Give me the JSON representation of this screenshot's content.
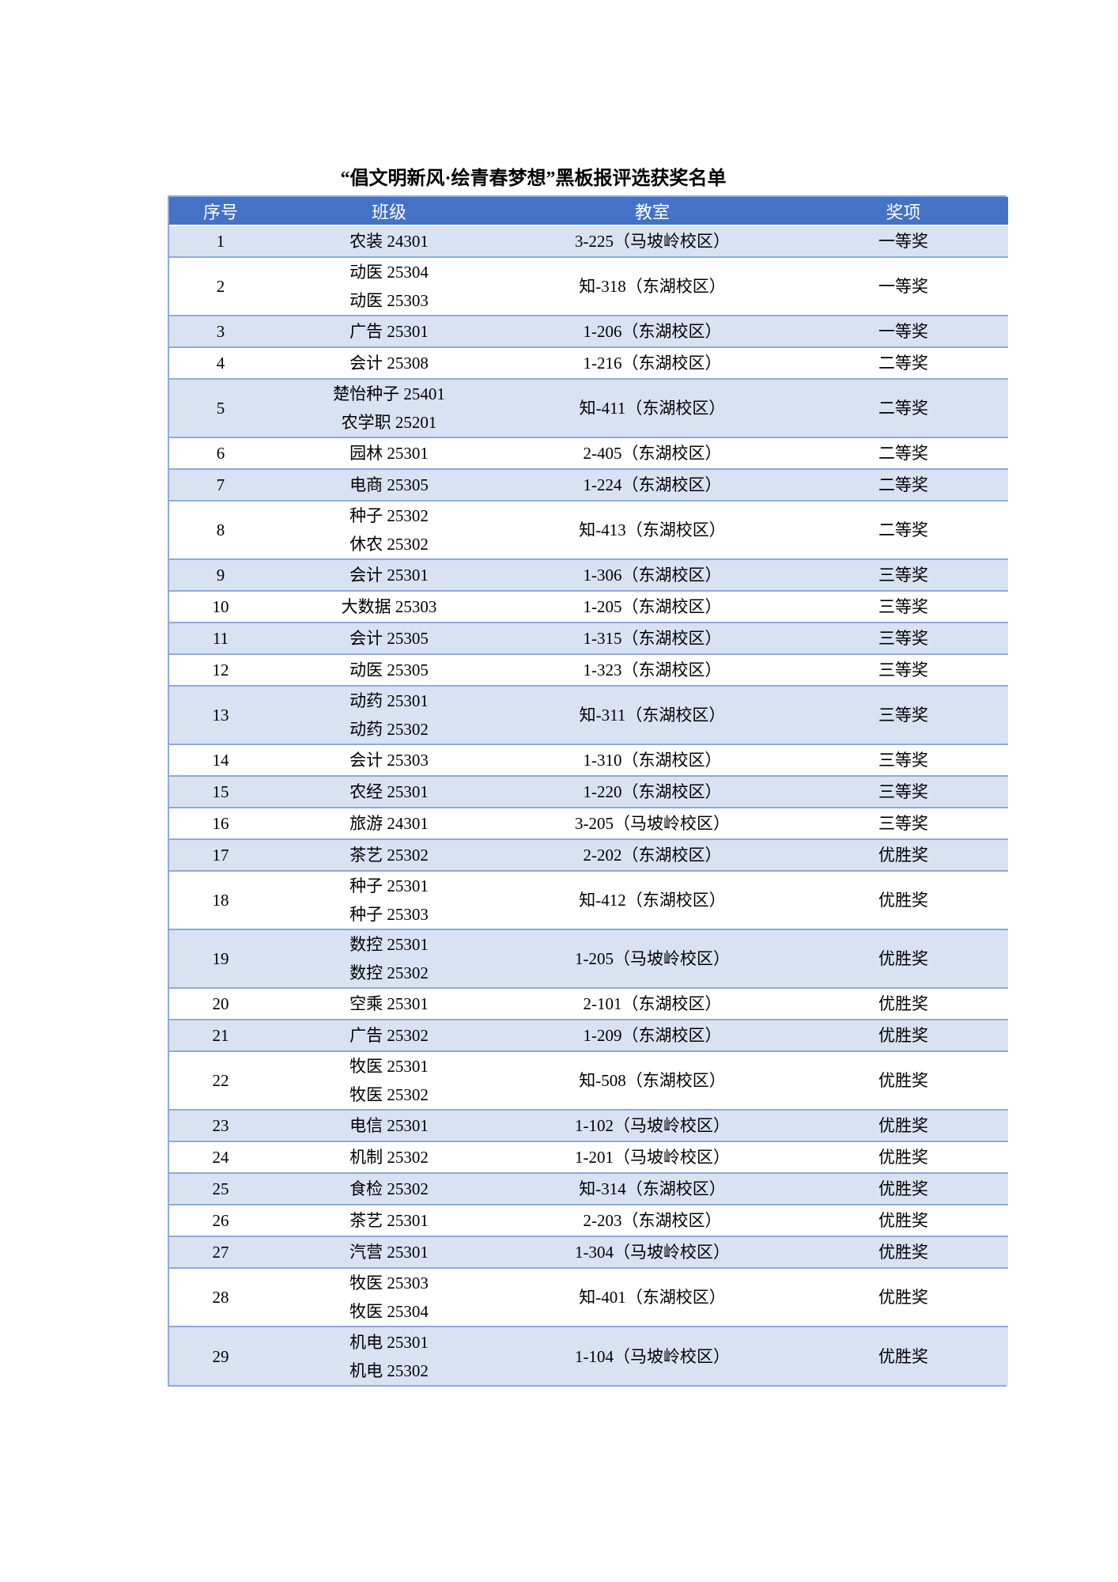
{
  "title": "“倡文明新风·绘青春梦想”黑板报评选获奖名单",
  "colors": {
    "header_bg": "#4472C4",
    "header_text": "#FFFFFF",
    "band_bg": "#D9E2F3",
    "row_bg": "#FFFFFF",
    "border": "#8EAADB",
    "body_text": "#000000",
    "page_bg": "#FFFFFF"
  },
  "table": {
    "headers": [
      "序号",
      "班级",
      "教室",
      "奖项"
    ],
    "rows": [
      {
        "no": "1",
        "classes": [
          "农装 24301"
        ],
        "room": "3-225（马坡岭校区）",
        "award": "一等奖"
      },
      {
        "no": "2",
        "classes": [
          "动医 25304",
          "动医 25303"
        ],
        "room": "知-318（东湖校区）",
        "award": "一等奖"
      },
      {
        "no": "3",
        "classes": [
          "广告 25301"
        ],
        "room": "1-206（东湖校区）",
        "award": "一等奖"
      },
      {
        "no": "4",
        "classes": [
          "会计 25308"
        ],
        "room": "1-216（东湖校区）",
        "award": "二等奖"
      },
      {
        "no": "5",
        "classes": [
          "楚怡种子 25401",
          "农学职 25201"
        ],
        "room": "知-411（东湖校区）",
        "award": "二等奖"
      },
      {
        "no": "6",
        "classes": [
          "园林 25301"
        ],
        "room": "2-405（东湖校区）",
        "award": "二等奖"
      },
      {
        "no": "7",
        "classes": [
          "电商 25305"
        ],
        "room": "1-224（东湖校区）",
        "award": "二等奖"
      },
      {
        "no": "8",
        "classes": [
          "种子 25302",
          "休农 25302"
        ],
        "room": "知-413（东湖校区）",
        "award": "二等奖"
      },
      {
        "no": "9",
        "classes": [
          "会计 25301"
        ],
        "room": "1-306（东湖校区）",
        "award": "三等奖"
      },
      {
        "no": "10",
        "classes": [
          "大数据 25303"
        ],
        "room": "1-205（东湖校区）",
        "award": "三等奖"
      },
      {
        "no": "11",
        "classes": [
          "会计 25305"
        ],
        "room": "1-315（东湖校区）",
        "award": "三等奖"
      },
      {
        "no": "12",
        "classes": [
          "动医 25305"
        ],
        "room": "1-323（东湖校区）",
        "award": "三等奖"
      },
      {
        "no": "13",
        "classes": [
          "动药 25301",
          "动药 25302"
        ],
        "room": "知-311（东湖校区）",
        "award": "三等奖"
      },
      {
        "no": "14",
        "classes": [
          "会计 25303"
        ],
        "room": "1-310（东湖校区）",
        "award": "三等奖"
      },
      {
        "no": "15",
        "classes": [
          "农经 25301"
        ],
        "room": "1-220（东湖校区）",
        "award": "三等奖"
      },
      {
        "no": "16",
        "classes": [
          "旅游 24301"
        ],
        "room": "3-205（马坡岭校区）",
        "award": "三等奖"
      },
      {
        "no": "17",
        "classes": [
          "茶艺 25302"
        ],
        "room": "2-202（东湖校区）",
        "award": "优胜奖"
      },
      {
        "no": "18",
        "classes": [
          "种子 25301",
          "种子 25303"
        ],
        "room": "知-412（东湖校区）",
        "award": "优胜奖"
      },
      {
        "no": "19",
        "classes": [
          "数控 25301",
          "数控 25302"
        ],
        "room": "1-205（马坡岭校区）",
        "award": "优胜奖"
      },
      {
        "no": "20",
        "classes": [
          "空乘 25301"
        ],
        "room": "2-101（东湖校区）",
        "award": "优胜奖"
      },
      {
        "no": "21",
        "classes": [
          "广告 25302"
        ],
        "room": "1-209（东湖校区）",
        "award": "优胜奖"
      },
      {
        "no": "22",
        "classes": [
          "牧医 25301",
          "牧医 25302"
        ],
        "room": "知-508（东湖校区）",
        "award": "优胜奖"
      },
      {
        "no": "23",
        "classes": [
          "电信 25301"
        ],
        "room": "1-102（马坡岭校区）",
        "award": "优胜奖"
      },
      {
        "no": "24",
        "classes": [
          "机制 25302"
        ],
        "room": "1-201（马坡岭校区）",
        "award": "优胜奖"
      },
      {
        "no": "25",
        "classes": [
          "食检 25302"
        ],
        "room": "知-314（东湖校区）",
        "award": "优胜奖"
      },
      {
        "no": "26",
        "classes": [
          "茶艺 25301"
        ],
        "room": "2-203（东湖校区）",
        "award": "优胜奖"
      },
      {
        "no": "27",
        "classes": [
          "汽营 25301"
        ],
        "room": "1-304（马坡岭校区）",
        "award": "优胜奖"
      },
      {
        "no": "28",
        "classes": [
          "牧医 25303",
          "牧医 25304"
        ],
        "room": "知-401（东湖校区）",
        "award": "优胜奖"
      },
      {
        "no": "29",
        "classes": [
          "机电 25301",
          "机电 25302"
        ],
        "room": "1-104（马坡岭校区）",
        "award": "优胜奖"
      }
    ]
  }
}
